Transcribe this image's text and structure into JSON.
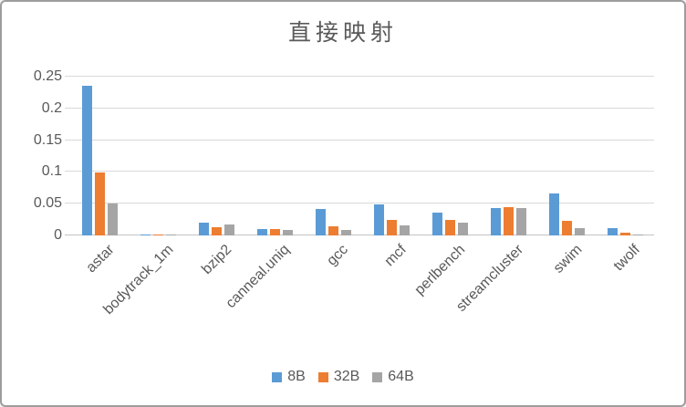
{
  "chart_data": {
    "type": "bar",
    "title": "直接映射",
    "categories": [
      "astar",
      "bodytrack_1m",
      "bzip2",
      "canneal.uniq",
      "gcc",
      "mcf",
      "perlbench",
      "streamcluster",
      "swim",
      "twolf"
    ],
    "series": [
      {
        "name": "8B",
        "color": "#5B9BD5",
        "values": [
          0.235,
          0.002,
          0.02,
          0.01,
          0.042,
          0.049,
          0.036,
          0.043,
          0.066,
          0.012
        ]
      },
      {
        "name": "32B",
        "color": "#ED7D31",
        "values": [
          0.099,
          0.002,
          0.013,
          0.01,
          0.014,
          0.024,
          0.024,
          0.044,
          0.023,
          0.004
        ]
      },
      {
        "name": "64B",
        "color": "#A5A5A5",
        "values": [
          0.051,
          0.002,
          0.017,
          0.009,
          0.008,
          0.016,
          0.02,
          0.043,
          0.012,
          0.002
        ]
      }
    ],
    "ylim": [
      0,
      0.25
    ],
    "ytick_step": 0.05,
    "ytick_labels": [
      "0",
      "0.05",
      "0.1",
      "0.15",
      "0.2",
      "0.25"
    ],
    "grid": true,
    "legend_position": "bottom",
    "xlabel": "",
    "ylabel": ""
  },
  "style": {
    "text_color": "#595959",
    "gridline_color": "#D9D9D9",
    "axis_line_color": "#C3C3C3",
    "background": "#FFFFFF",
    "border_color": "#9D9D9D"
  }
}
